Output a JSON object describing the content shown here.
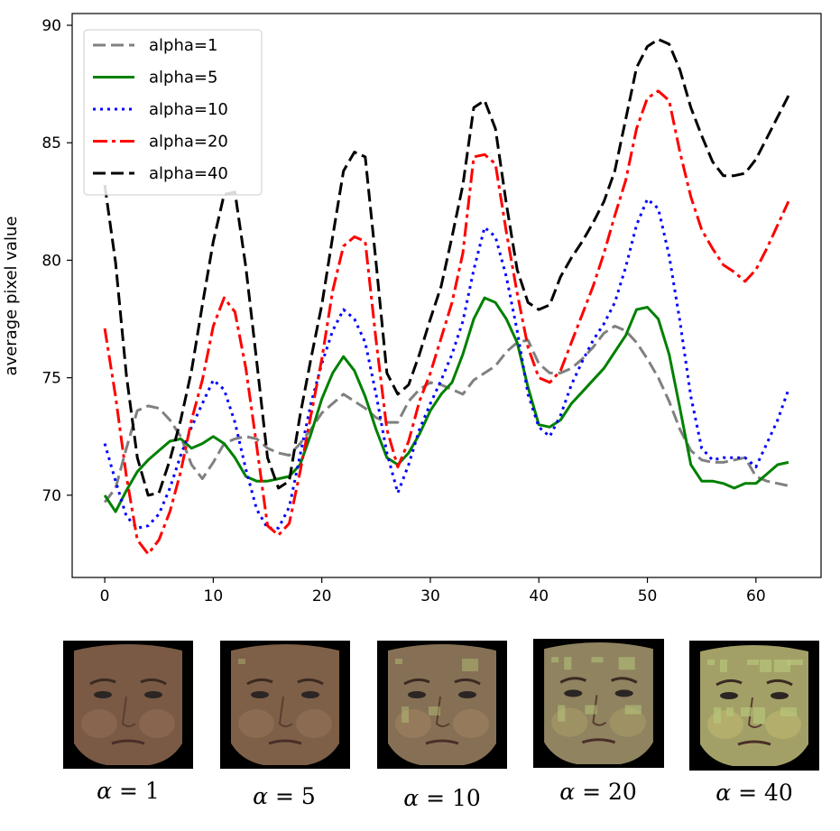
{
  "chart_data": {
    "type": "line",
    "title": "",
    "xlabel": "",
    "ylabel": "average pixel value",
    "xlim": [
      -3,
      66
    ],
    "ylim": [
      66.5,
      90.5
    ],
    "xticks": [
      0,
      10,
      20,
      30,
      40,
      50,
      60
    ],
    "yticks": [
      70,
      75,
      80,
      85,
      90
    ],
    "grid": false,
    "legend_position": "top-left",
    "x": [
      0,
      1,
      2,
      3,
      4,
      5,
      6,
      7,
      8,
      9,
      10,
      11,
      12,
      13,
      14,
      15,
      16,
      17,
      18,
      19,
      20,
      21,
      22,
      23,
      24,
      25,
      26,
      27,
      28,
      29,
      30,
      31,
      32,
      33,
      34,
      35,
      36,
      37,
      38,
      39,
      40,
      41,
      42,
      43,
      44,
      45,
      46,
      47,
      48,
      49,
      50,
      51,
      52,
      53,
      54,
      55,
      56,
      57,
      58,
      59,
      60,
      61,
      62,
      63
    ],
    "series": [
      {
        "name": "alpha=1",
        "color": "#808080",
        "style": "dashed",
        "values": [
          69.7,
          70.3,
          72.0,
          73.6,
          73.8,
          73.7,
          73.2,
          72.5,
          71.3,
          70.7,
          71.4,
          72.2,
          72.4,
          72.5,
          72.4,
          72.0,
          71.8,
          71.7,
          72.2,
          72.8,
          73.5,
          73.9,
          74.3,
          74.0,
          73.7,
          73.3,
          73.1,
          73.1,
          74.0,
          74.5,
          74.8,
          74.7,
          74.5,
          74.3,
          74.9,
          75.2,
          75.5,
          76.1,
          76.5,
          76.6,
          75.6,
          75.2,
          75.2,
          75.4,
          75.8,
          76.3,
          76.9,
          77.2,
          77.0,
          76.5,
          75.8,
          75.0,
          74.0,
          72.8,
          71.9,
          71.5,
          71.4,
          71.4,
          71.5,
          71.6,
          70.8,
          70.6,
          70.5,
          70.4
        ]
      },
      {
        "name": "alpha=5",
        "color": "#008000",
        "style": "solid",
        "values": [
          70.0,
          69.3,
          70.2,
          71.0,
          71.5,
          71.9,
          72.3,
          72.4,
          72.0,
          72.2,
          72.5,
          72.2,
          71.6,
          70.8,
          70.6,
          70.6,
          70.7,
          70.8,
          71.3,
          72.6,
          74.1,
          75.2,
          75.9,
          75.3,
          74.2,
          72.8,
          71.6,
          71.3,
          71.8,
          72.6,
          73.6,
          74.3,
          74.8,
          76.0,
          77.5,
          78.4,
          78.2,
          77.5,
          76.5,
          74.6,
          73.0,
          72.9,
          73.2,
          73.9,
          74.4,
          74.9,
          75.4,
          76.1,
          76.8,
          77.9,
          78.0,
          77.5,
          76.0,
          73.7,
          71.3,
          70.6,
          70.6,
          70.5,
          70.3,
          70.5,
          70.5,
          70.9,
          71.3,
          71.4
        ]
      },
      {
        "name": "alpha=10",
        "color": "#0000ff",
        "style": "dotted",
        "values": [
          72.2,
          70.6,
          69.1,
          68.6,
          68.7,
          69.2,
          70.3,
          71.7,
          72.9,
          73.9,
          74.9,
          74.5,
          73.1,
          71.1,
          69.4,
          68.6,
          68.6,
          69.5,
          71.7,
          73.9,
          75.6,
          77.0,
          77.9,
          77.5,
          76.5,
          74.3,
          71.8,
          70.1,
          71.3,
          72.8,
          73.9,
          74.9,
          76.0,
          77.4,
          79.6,
          81.4,
          81.0,
          79.3,
          77.0,
          74.3,
          72.9,
          72.5,
          73.4,
          74.7,
          75.7,
          76.6,
          77.3,
          78.2,
          79.7,
          81.5,
          82.6,
          82.2,
          80.2,
          77.4,
          74.2,
          72.0,
          71.5,
          71.6,
          71.6,
          71.6,
          71.2,
          72.2,
          73.2,
          74.5
        ]
      },
      {
        "name": "alpha=20",
        "color": "#ff0000",
        "style": "dashdot",
        "values": [
          77.1,
          74.2,
          70.8,
          68.1,
          67.5,
          68.1,
          69.3,
          71.0,
          73.2,
          74.9,
          77.2,
          78.4,
          77.8,
          75.4,
          72.1,
          68.7,
          68.3,
          68.8,
          71.0,
          73.4,
          75.8,
          78.7,
          80.6,
          81.0,
          80.8,
          76.6,
          72.8,
          71.2,
          72.3,
          74.0,
          75.2,
          76.7,
          78.2,
          80.3,
          84.4,
          84.5,
          84.1,
          81.2,
          78.6,
          76.3,
          75.0,
          74.8,
          75.3,
          76.5,
          77.7,
          78.9,
          80.3,
          81.9,
          83.4,
          85.6,
          86.9,
          87.2,
          86.8,
          84.6,
          82.7,
          81.3,
          80.5,
          79.8,
          79.5,
          79.1,
          79.6,
          80.5,
          81.5,
          82.5
        ]
      },
      {
        "name": "alpha=40",
        "color": "#000000",
        "style": "dashed",
        "values": [
          83.2,
          79.9,
          75.1,
          71.6,
          70.0,
          70.1,
          71.5,
          73.2,
          75.3,
          78.1,
          80.8,
          82.8,
          82.9,
          79.7,
          75.7,
          71.6,
          70.3,
          70.6,
          73.4,
          75.8,
          78.1,
          81.0,
          83.8,
          84.6,
          84.4,
          79.9,
          75.2,
          74.3,
          74.7,
          76.0,
          77.5,
          78.9,
          81.0,
          83.2,
          86.5,
          86.8,
          85.6,
          82.4,
          79.6,
          78.2,
          77.9,
          78.1,
          79.3,
          80.1,
          80.8,
          81.6,
          82.5,
          83.8,
          86.0,
          88.2,
          89.1,
          89.4,
          89.2,
          88.1,
          86.5,
          85.3,
          84.2,
          83.6,
          83.6,
          83.7,
          84.3,
          85.2,
          86.1,
          87.0
        ]
      }
    ]
  },
  "faces": [
    {
      "caption_symbol": "α",
      "caption_value": "= 1",
      "tone": "#7a5a45",
      "cheek": "#8d6a52",
      "patch": 0.0
    },
    {
      "caption_symbol": "α",
      "caption_value": "= 5",
      "tone": "#7e5f48",
      "cheek": "#927056",
      "patch": 0.1
    },
    {
      "caption_symbol": "α",
      "caption_value": "= 10",
      "tone": "#867055",
      "cheek": "#9b8060",
      "patch": 0.25
    },
    {
      "caption_symbol": "α",
      "caption_value": "= 20",
      "tone": "#8f8360",
      "cheek": "#a49966",
      "patch": 0.5
    },
    {
      "caption_symbol": "α",
      "caption_value": "= 40",
      "tone": "#a3a067",
      "cheek": "#b9b36d",
      "patch": 0.8
    }
  ]
}
